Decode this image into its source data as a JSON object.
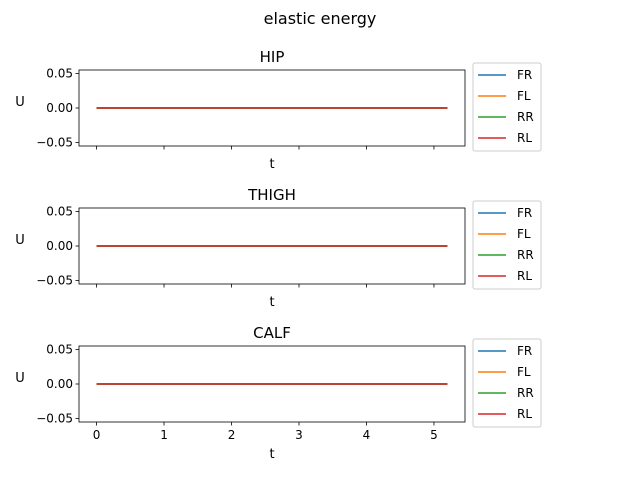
{
  "suptitle": "elastic energy",
  "chart_data": [
    {
      "type": "line",
      "title": "HIP",
      "xlabel": "t",
      "ylabel": "U",
      "xlim": [
        -0.26,
        5.46
      ],
      "ylim": [
        -0.055,
        0.055
      ],
      "xticks": [
        0,
        1,
        2,
        3,
        4,
        5
      ],
      "yticks": [
        -0.05,
        0.0,
        0.05
      ],
      "ytick_labels": [
        "−0.05",
        "0.00",
        "0.05"
      ],
      "show_xtick_labels": false,
      "legend_placement": "outside-right",
      "series": [
        {
          "name": "FR",
          "color": "#1f77b4",
          "x": [
            0,
            5.2
          ],
          "y": [
            0,
            0
          ]
        },
        {
          "name": "FL",
          "color": "#ff7f0e",
          "x": [
            0,
            5.2
          ],
          "y": [
            0,
            0
          ]
        },
        {
          "name": "RR",
          "color": "#2ca02c",
          "x": [
            0,
            5.2
          ],
          "y": [
            0,
            0
          ]
        },
        {
          "name": "RL",
          "color": "#d62728",
          "x": [
            0,
            5.2
          ],
          "y": [
            0,
            0
          ]
        }
      ]
    },
    {
      "type": "line",
      "title": "THIGH",
      "xlabel": "t",
      "ylabel": "U",
      "xlim": [
        -0.26,
        5.46
      ],
      "ylim": [
        -0.055,
        0.055
      ],
      "xticks": [
        0,
        1,
        2,
        3,
        4,
        5
      ],
      "yticks": [
        -0.05,
        0.0,
        0.05
      ],
      "ytick_labels": [
        "−0.05",
        "0.00",
        "0.05"
      ],
      "show_xtick_labels": false,
      "legend_placement": "outside-right",
      "series": [
        {
          "name": "FR",
          "color": "#1f77b4",
          "x": [
            0,
            5.2
          ],
          "y": [
            0,
            0
          ]
        },
        {
          "name": "FL",
          "color": "#ff7f0e",
          "x": [
            0,
            5.2
          ],
          "y": [
            0,
            0
          ]
        },
        {
          "name": "RR",
          "color": "#2ca02c",
          "x": [
            0,
            5.2
          ],
          "y": [
            0,
            0
          ]
        },
        {
          "name": "RL",
          "color": "#d62728",
          "x": [
            0,
            5.2
          ],
          "y": [
            0,
            0
          ]
        }
      ]
    },
    {
      "type": "line",
      "title": "CALF",
      "xlabel": "t",
      "ylabel": "U",
      "xlim": [
        -0.26,
        5.46
      ],
      "ylim": [
        -0.055,
        0.055
      ],
      "xticks": [
        0,
        1,
        2,
        3,
        4,
        5
      ],
      "yticks": [
        -0.05,
        0.0,
        0.05
      ],
      "ytick_labels": [
        "−0.05",
        "0.00",
        "0.05"
      ],
      "show_xtick_labels": true,
      "legend_placement": "outside-right",
      "series": [
        {
          "name": "FR",
          "color": "#1f77b4",
          "x": [
            0,
            5.2
          ],
          "y": [
            0,
            0
          ]
        },
        {
          "name": "FL",
          "color": "#ff7f0e",
          "x": [
            0,
            5.2
          ],
          "y": [
            0,
            0
          ]
        },
        {
          "name": "RR",
          "color": "#2ca02c",
          "x": [
            0,
            5.2
          ],
          "y": [
            0,
            0
          ]
        },
        {
          "name": "RL",
          "color": "#d62728",
          "x": [
            0,
            5.2
          ],
          "y": [
            0,
            0
          ]
        }
      ]
    }
  ]
}
